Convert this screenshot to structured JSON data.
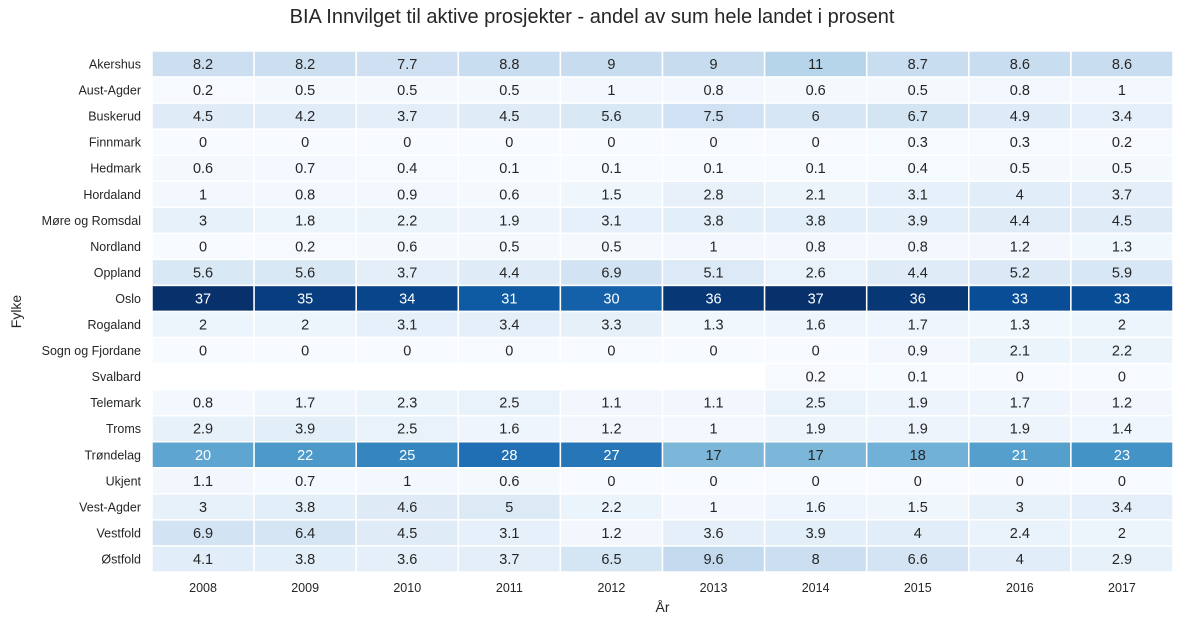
{
  "chart_data": {
    "type": "heatmap",
    "title": "BIA Innvilget til aktive prosjekter - andel av sum hele landet i prosent",
    "xlabel": "År",
    "ylabel": "Fylke",
    "colormap": "Blues",
    "vmin": 0,
    "vmax": 37,
    "grid_color": "#ffffff",
    "x": [
      "2008",
      "2009",
      "2010",
      "2011",
      "2012",
      "2013",
      "2014",
      "2015",
      "2016",
      "2017"
    ],
    "y": [
      "Akershus",
      "Aust-Agder",
      "Buskerud",
      "Finnmark",
      "Hedmark",
      "Hordaland",
      "Møre og Romsdal",
      "Nordland",
      "Oppland",
      "Oslo",
      "Rogaland",
      "Sogn og Fjordane",
      "Svalbard",
      "Telemark",
      "Troms",
      "Trøndelag",
      "Ukjent",
      "Vest-Agder",
      "Vestfold",
      "Østfold"
    ],
    "values": [
      [
        8.2,
        8.2,
        7.7,
        8.8,
        9,
        9,
        11,
        8.7,
        8.6,
        8.6
      ],
      [
        0.2,
        0.5,
        0.5,
        0.5,
        1,
        0.8,
        0.6,
        0.5,
        0.8,
        1
      ],
      [
        4.5,
        4.2,
        3.7,
        4.5,
        5.6,
        7.5,
        6,
        6.7,
        4.9,
        3.4
      ],
      [
        0,
        0,
        0,
        0,
        0,
        0,
        0,
        0.3,
        0.3,
        0.2
      ],
      [
        0.6,
        0.7,
        0.4,
        0.1,
        0.1,
        0.1,
        0.1,
        0.4,
        0.5,
        0.5
      ],
      [
        1,
        0.8,
        0.9,
        0.6,
        1.5,
        2.8,
        2.1,
        3.1,
        4,
        3.7
      ],
      [
        3,
        1.8,
        2.2,
        1.9,
        3.1,
        3.8,
        3.8,
        3.9,
        4.4,
        4.5
      ],
      [
        0,
        0.2,
        0.6,
        0.5,
        0.5,
        1,
        0.8,
        0.8,
        1.2,
        1.3
      ],
      [
        5.6,
        5.6,
        3.7,
        4.4,
        6.9,
        5.1,
        2.6,
        4.4,
        5.2,
        5.9
      ],
      [
        37,
        35,
        34,
        31,
        30,
        36,
        37,
        36,
        33,
        33
      ],
      [
        2,
        2,
        3.1,
        3.4,
        3.3,
        1.3,
        1.6,
        1.7,
        1.3,
        2
      ],
      [
        0,
        0,
        0,
        0,
        0,
        0,
        0,
        0.9,
        2.1,
        2.2
      ],
      [
        null,
        null,
        null,
        null,
        null,
        null,
        0.2,
        0.1,
        0,
        0
      ],
      [
        0.8,
        1.7,
        2.3,
        2.5,
        1.1,
        1.1,
        2.5,
        1.9,
        1.7,
        1.2
      ],
      [
        2.9,
        3.9,
        2.5,
        1.6,
        1.2,
        1,
        1.9,
        1.9,
        1.9,
        1.4
      ],
      [
        20,
        22,
        25,
        28,
        27,
        17,
        17,
        18,
        21,
        23
      ],
      [
        1.1,
        0.7,
        1,
        0.6,
        0,
        0,
        0,
        0,
        0,
        0
      ],
      [
        3,
        3.8,
        4.6,
        5,
        2.2,
        1,
        1.6,
        1.5,
        3,
        3.4
      ],
      [
        6.9,
        6.4,
        4.5,
        3.1,
        1.2,
        3.6,
        3.9,
        4,
        2.4,
        2
      ],
      [
        4.1,
        3.8,
        3.6,
        3.7,
        6.5,
        9.6,
        8,
        6.6,
        4,
        2.9
      ]
    ]
  }
}
